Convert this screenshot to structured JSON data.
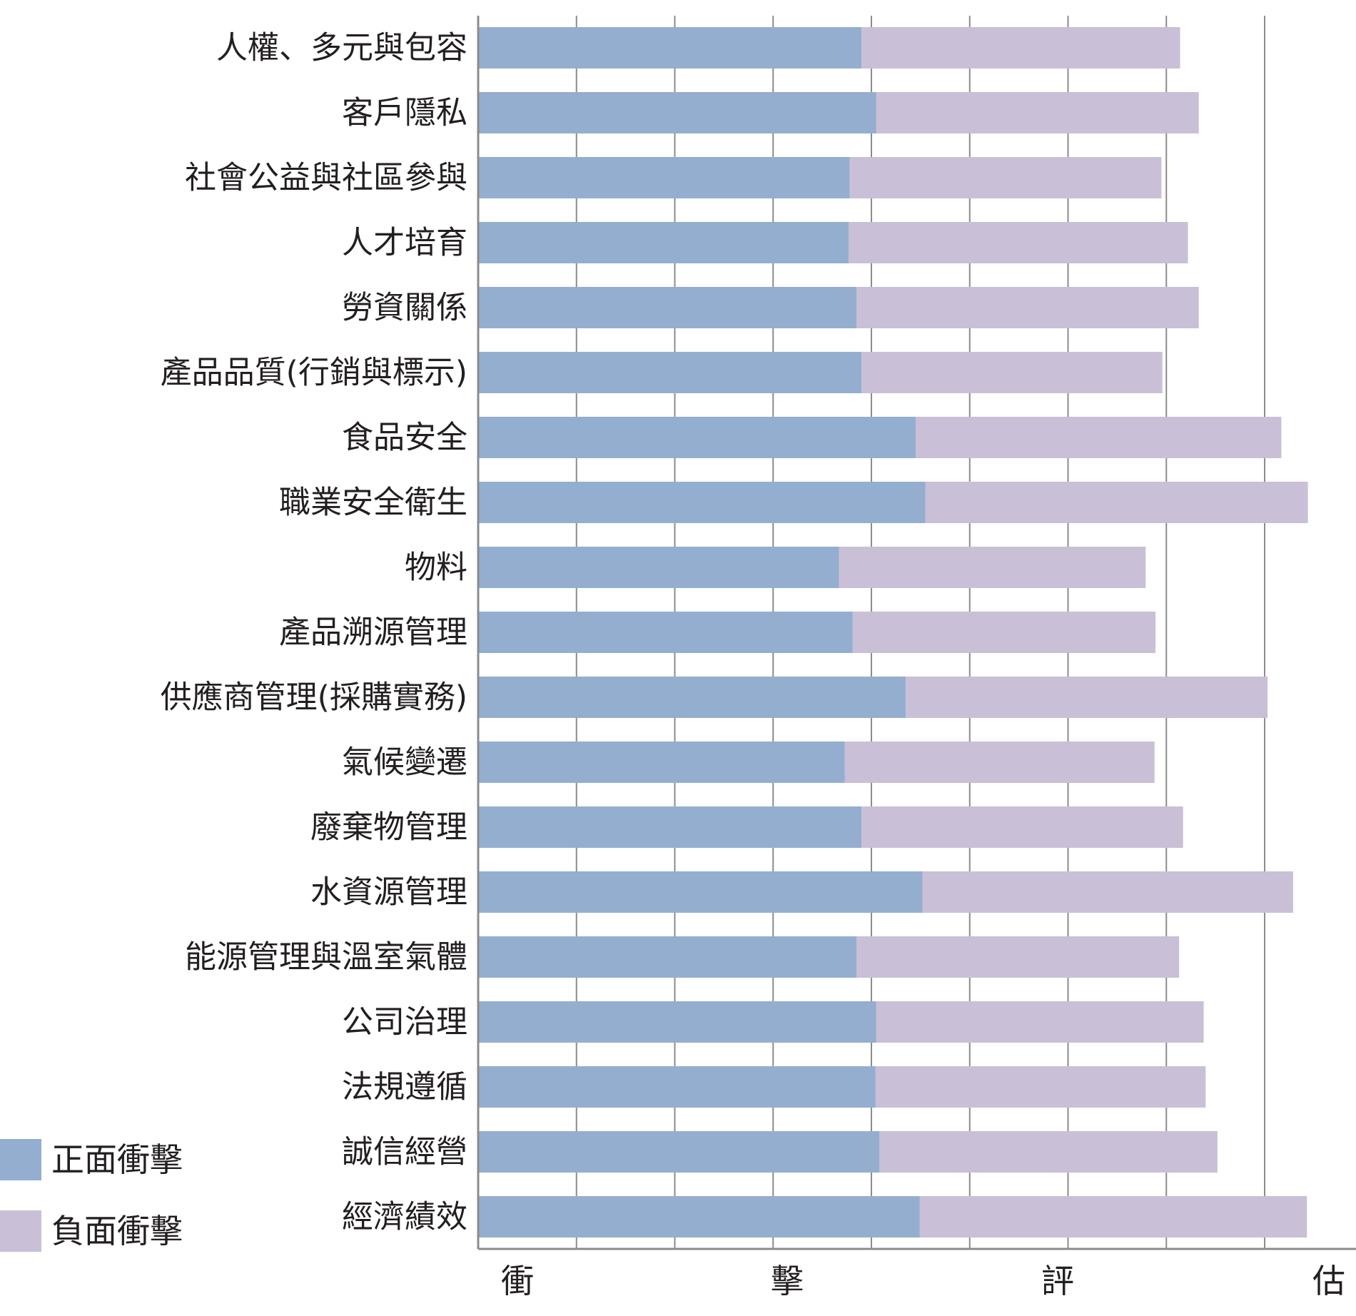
{
  "chart_data": {
    "type": "bar",
    "orientation": "horizontal",
    "stacked": true,
    "categories": [
      "人權、多元與包容",
      "客戶隱私",
      "社會公益與社區參與",
      "人才培育",
      "勞資關係",
      "產品品質(行銷與標示)",
      "食品安全",
      "職業安全衛生",
      "物料",
      "產品溯源管理",
      "供應商管理(採購實務)",
      "氣候變遷",
      "廢棄物管理",
      "水資源管理",
      "能源管理與溫室氣體",
      "公司治理",
      "法規遵循",
      "誠信經營",
      "經濟績效"
    ],
    "series": [
      {
        "name": "正面衝擊",
        "color": "#94aecf",
        "values": [
          3.9,
          4.05,
          3.78,
          3.77,
          3.85,
          3.9,
          4.45,
          4.55,
          3.67,
          3.81,
          4.35,
          3.73,
          3.9,
          4.52,
          3.85,
          4.05,
          4.04,
          4.08,
          4.49
        ]
      },
      {
        "name": "負面衝擊",
        "color": "#c9bfd7",
        "values": [
          3.24,
          3.28,
          3.17,
          3.45,
          3.48,
          3.06,
          3.72,
          3.89,
          3.12,
          3.08,
          3.68,
          3.15,
          3.27,
          3.77,
          3.28,
          3.33,
          3.36,
          3.44,
          3.94
        ]
      }
    ],
    "xlim": [
      0,
      9
    ],
    "x_grid_step": 1,
    "grid": true,
    "xlabel": [
      "衝",
      "擊",
      "評",
      "估"
    ],
    "legend_position": "bottom-left"
  }
}
